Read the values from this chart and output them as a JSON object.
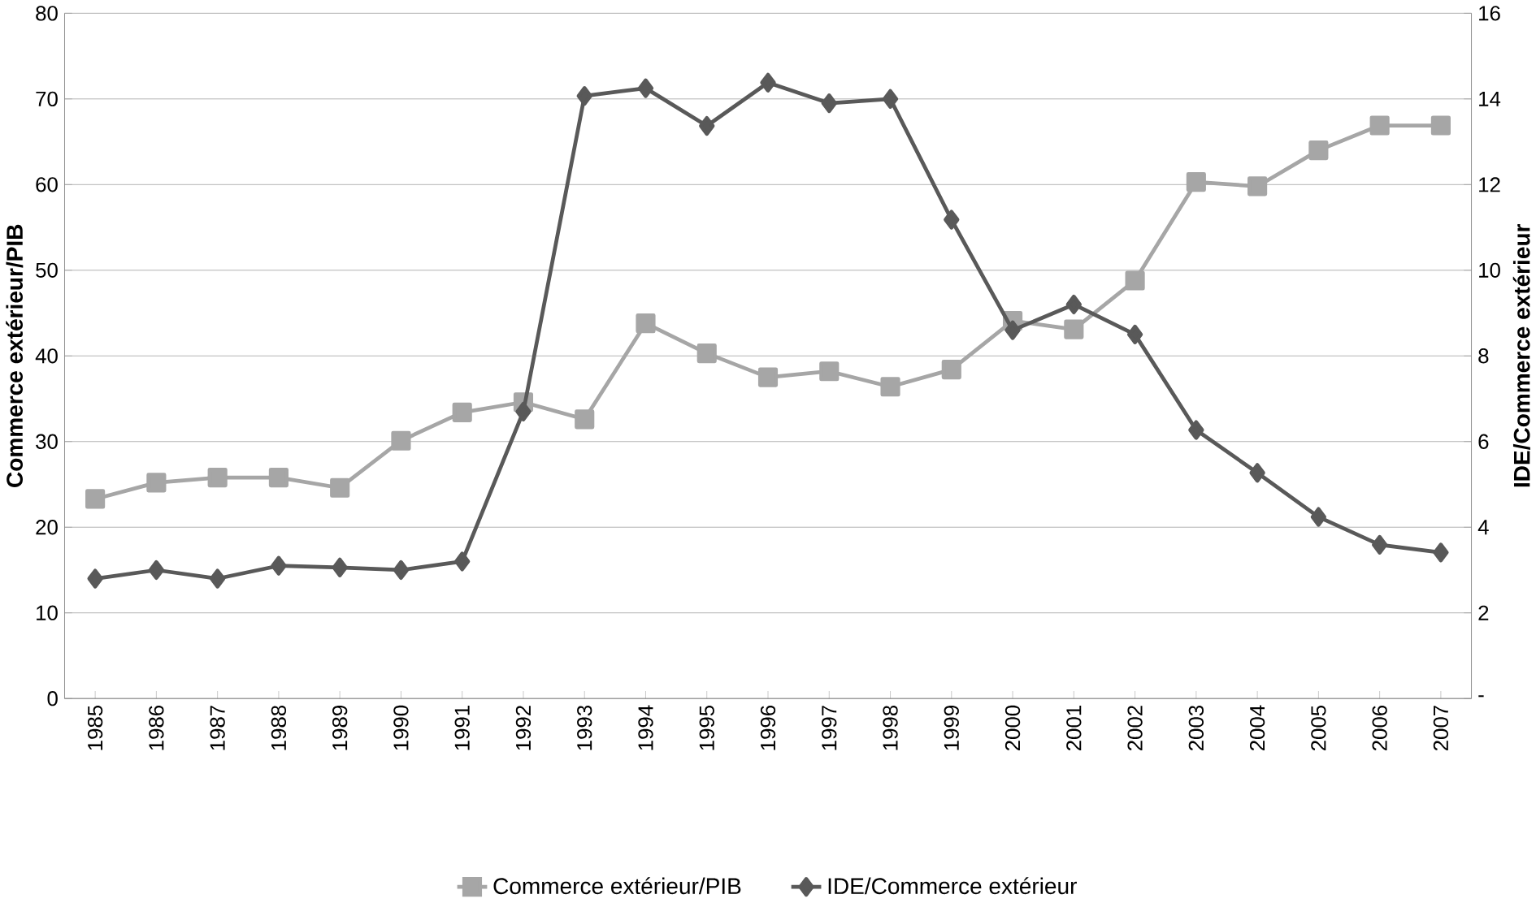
{
  "chart_data": {
    "type": "line",
    "ylabel": "Commerce extérieur/PIB",
    "y2label": "IDE/Commerce extérieur",
    "categories": [
      "1985",
      "1986",
      "1987",
      "1988",
      "1989",
      "1990",
      "1991",
      "1992",
      "1993",
      "1994",
      "1995",
      "1996",
      "1997",
      "1998",
      "1999",
      "2000",
      "2001",
      "2002",
      "2003",
      "2004",
      "2005",
      "2006",
      "2007"
    ],
    "series": [
      {
        "name": "Commerce extérieur/PIB",
        "color": "#a6a6a6",
        "marker": "square",
        "values": [
          23.3,
          25.2,
          25.8,
          25.8,
          24.6,
          30.1,
          33.4,
          34.6,
          32.6,
          43.8,
          40.3,
          37.5,
          38.2,
          36.4,
          38.4,
          44.1,
          43.1,
          48.8,
          60.3,
          59.8,
          64.0,
          66.9,
          66.9
        ]
      },
      {
        "name": "IDE/Commerce extérieur",
        "color": "#595959",
        "marker": "diamond",
        "axis": "y2",
        "values": [
          2.8,
          3.0,
          2.8,
          3.1,
          3.06,
          3.0,
          3.2,
          6.7,
          14.07,
          14.25,
          13.37,
          14.38,
          13.9,
          14.0,
          11.18,
          8.6,
          9.2,
          8.5,
          6.27,
          5.27,
          4.24,
          3.59,
          3.41
        ]
      }
    ],
    "ylim": [
      0,
      80
    ],
    "yticks": [
      0,
      10,
      20,
      30,
      40,
      50,
      60,
      70,
      80
    ],
    "y2lim": [
      0,
      16
    ],
    "y2ticks": [
      {
        "value": 0,
        "label": "-"
      },
      2,
      4,
      6,
      8,
      10,
      12,
      14,
      16
    ],
    "grid": "y",
    "legend": "bottom"
  }
}
